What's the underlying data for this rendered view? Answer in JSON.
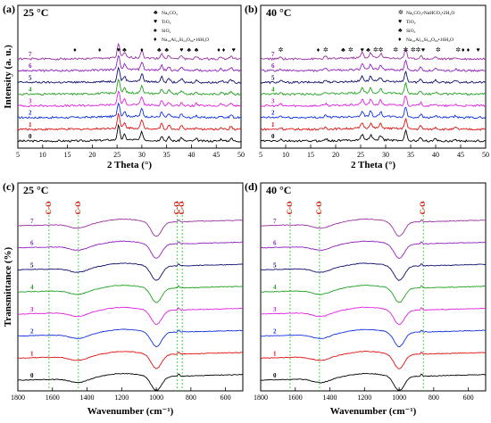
{
  "colors": [
    "#000000",
    "#e01010",
    "#1030e0",
    "#e020e0",
    "#20a020",
    "#101070",
    "#9020c0",
    "#9a30a0"
  ],
  "chart_data": [
    {
      "type": "line",
      "panel_label": "(a)",
      "temperature": "25 °C",
      "xlabel": "2 Theta (°)",
      "ylabel": "Intensity (a. u.)",
      "xlim": [
        5,
        50
      ],
      "xticks": [
        5,
        10,
        15,
        20,
        25,
        30,
        35,
        40,
        45,
        50
      ],
      "series_labels": [
        "0",
        "1",
        "2",
        "3",
        "4",
        "5",
        "6",
        "7"
      ],
      "legend": [
        {
          "symbol": "♣",
          "text": "Na₂CO₃"
        },
        {
          "symbol": "♥",
          "text": "TiO₂"
        },
        {
          "symbol": "♠",
          "text": "SiO₂"
        },
        {
          "symbol": "♦",
          "text": "Na₁₆Al₁₆Si₂₄O₈₀•16H₂O"
        }
      ],
      "markers": [
        {
          "x": 16.5,
          "s": "♦"
        },
        {
          "x": 21.5,
          "s": "♦"
        },
        {
          "x": 25.3,
          "s": "♥"
        },
        {
          "x": 26.5,
          "s": "♣"
        },
        {
          "x": 30.0,
          "s": "♦"
        },
        {
          "x": 33.5,
          "s": "♣"
        },
        {
          "x": 35.0,
          "s": "♣"
        },
        {
          "x": 38.0,
          "s": "♥"
        },
        {
          "x": 39.5,
          "s": "♣"
        },
        {
          "x": 41.0,
          "s": "♣"
        },
        {
          "x": 45.5,
          "s": "♦"
        },
        {
          "x": 46.5,
          "s": "♦"
        },
        {
          "x": 48.5,
          "s": "♥"
        }
      ],
      "peaks": [
        [
          25.3,
          1.0
        ],
        [
          26.5,
          0.35
        ],
        [
          30.0,
          0.55
        ],
        [
          34.0,
          0.35
        ],
        [
          35.5,
          0.25
        ],
        [
          38.0,
          0.25
        ],
        [
          41.0,
          0.15
        ],
        [
          46.0,
          0.15
        ],
        [
          48.0,
          0.2
        ]
      ]
    },
    {
      "type": "line",
      "panel_label": "(b)",
      "temperature": "40 °C",
      "xlabel": "2 Theta (°)",
      "ylabel": "",
      "xlim": [
        5,
        50
      ],
      "xticks": [
        5,
        10,
        15,
        20,
        25,
        30,
        35,
        40,
        45,
        50
      ],
      "series_labels": [
        "0",
        "1",
        "2",
        "3",
        "4",
        "5",
        "6",
        "7"
      ],
      "legend": [
        {
          "symbol": "✲",
          "text": "Na₂CO₃•NaHCO₃•2H₂O"
        },
        {
          "symbol": "♥",
          "text": "TiO₂"
        },
        {
          "symbol": "♣",
          "text": "SiO₂"
        },
        {
          "symbol": "♦",
          "text": "Na₁₆Al₁₆Si₂₄O₈₀•16H₂O"
        }
      ],
      "markers": [
        {
          "x": 9.0,
          "s": "✲"
        },
        {
          "x": 16.5,
          "s": "♦"
        },
        {
          "x": 18.0,
          "s": "✲"
        },
        {
          "x": 21.5,
          "s": "♣"
        },
        {
          "x": 23.0,
          "s": "✲"
        },
        {
          "x": 25.3,
          "s": "♥"
        },
        {
          "x": 26.5,
          "s": "♣"
        },
        {
          "x": 28.0,
          "s": "✲"
        },
        {
          "x": 29.0,
          "s": "✲"
        },
        {
          "x": 32.0,
          "s": "✲"
        },
        {
          "x": 34.0,
          "s": "✲"
        },
        {
          "x": 35.5,
          "s": "✲"
        },
        {
          "x": 36.5,
          "s": "✲"
        },
        {
          "x": 37.5,
          "s": "♥"
        },
        {
          "x": 40.5,
          "s": "✲"
        },
        {
          "x": 44.5,
          "s": "✲"
        },
        {
          "x": 45.5,
          "s": "♦"
        },
        {
          "x": 46.5,
          "s": "♦"
        },
        {
          "x": 48.5,
          "s": "♥"
        }
      ],
      "peaks": [
        [
          9.0,
          0.15
        ],
        [
          18.0,
          0.2
        ],
        [
          25.3,
          0.5
        ],
        [
          27.0,
          0.45
        ],
        [
          29.0,
          0.4
        ],
        [
          34.0,
          0.95
        ],
        [
          37.0,
          0.3
        ],
        [
          40.0,
          0.2
        ],
        [
          44.0,
          0.15
        ]
      ]
    },
    {
      "type": "line",
      "panel_label": "(c)",
      "temperature": "25 °C",
      "xlabel": "Wavenumber (cm⁻¹)",
      "ylabel": "Transmittance (%)",
      "xlim": [
        1800,
        500
      ],
      "xticks": [
        1800,
        1600,
        1400,
        1200,
        1000,
        800,
        600
      ],
      "series_labels": [
        "0",
        "1",
        "2",
        "3",
        "4",
        "5",
        "6",
        "7"
      ],
      "vlines": [
        {
          "x": 1620,
          "label": "C-O"
        },
        {
          "x": 1450,
          "label": "C-O"
        },
        {
          "x": 880,
          "label": "C-O"
        },
        {
          "x": 850,
          "label": "C-O"
        }
      ]
    },
    {
      "type": "line",
      "panel_label": "(d)",
      "temperature": "40 °C",
      "xlabel": "Wavenumber (cm⁻¹)",
      "ylabel": "",
      "xlim": [
        1800,
        500
      ],
      "xticks": [
        1800,
        1600,
        1400,
        1200,
        1000,
        800,
        600
      ],
      "series_labels": [
        "0",
        "1",
        "2",
        "3",
        "4",
        "5",
        "6",
        "7"
      ],
      "vlines": [
        {
          "x": 1630,
          "label": "C-O"
        },
        {
          "x": 1460,
          "label": "C-O"
        },
        {
          "x": 860,
          "label": "C-O"
        }
      ]
    }
  ]
}
